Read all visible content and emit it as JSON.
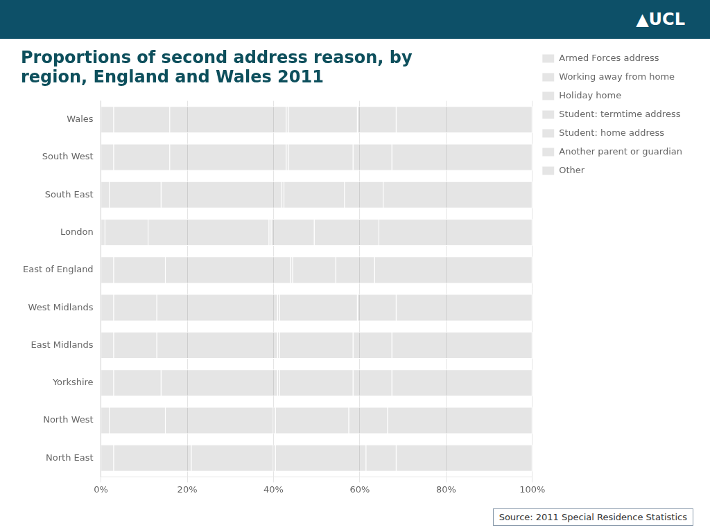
{
  "chart_data": {
    "type": "bar",
    "orientation": "horizontal",
    "stacked": true,
    "title": [
      "Proportions of second address reason, by",
      "region, England and Wales 2011"
    ],
    "annotations": [
      "▲UCL",
      "Source: 2011 Special Residence Statistics"
    ],
    "categories": [
      "Wales",
      "South West",
      "South East",
      "London",
      "East of England",
      "West Midlands",
      "East Midlands",
      "Yorkshire",
      "North West",
      "North East"
    ],
    "series": [
      {
        "name": "Armed Forces address",
        "values": [
          3,
          3,
          2,
          1,
          3,
          3,
          3,
          3,
          2,
          3
        ]
      },
      {
        "name": "Working away from home",
        "values": [
          13,
          13,
          12,
          10,
          12,
          10,
          10,
          11,
          13,
          18
        ]
      },
      {
        "name": "Holiday home",
        "values": [
          27,
          27,
          28,
          28,
          29,
          28,
          28,
          27,
          25,
          19
        ]
      },
      {
        "name": "Student: termtime address",
        "values": [
          0.5,
          0.5,
          0.5,
          0.5,
          0.5,
          0.5,
          0.5,
          0.5,
          0.5,
          0.5
        ]
      },
      {
        "name": "Student: home address",
        "values": [
          16,
          15,
          14,
          10,
          10,
          18,
          17,
          17,
          17,
          21
        ]
      },
      {
        "name": "Another parent or guardian",
        "values": [
          9,
          9,
          9,
          15,
          9,
          9,
          9,
          9,
          9,
          7
        ]
      },
      {
        "name": "Other",
        "values": [
          31.5,
          32.5,
          34.5,
          35.5,
          36.5,
          31.5,
          32.5,
          32.5,
          33.5,
          31.5
        ]
      }
    ],
    "xlim": [
      0,
      100
    ],
    "xticks": [
      {
        "value": 0,
        "label": "0%"
      },
      {
        "value": 20,
        "label": "20%"
      },
      {
        "value": 40,
        "label": "40%"
      },
      {
        "value": 60,
        "label": "60%"
      },
      {
        "value": 80,
        "label": "80%"
      },
      {
        "value": 100,
        "label": "100%"
      }
    ],
    "grid": true,
    "legend": "right"
  }
}
